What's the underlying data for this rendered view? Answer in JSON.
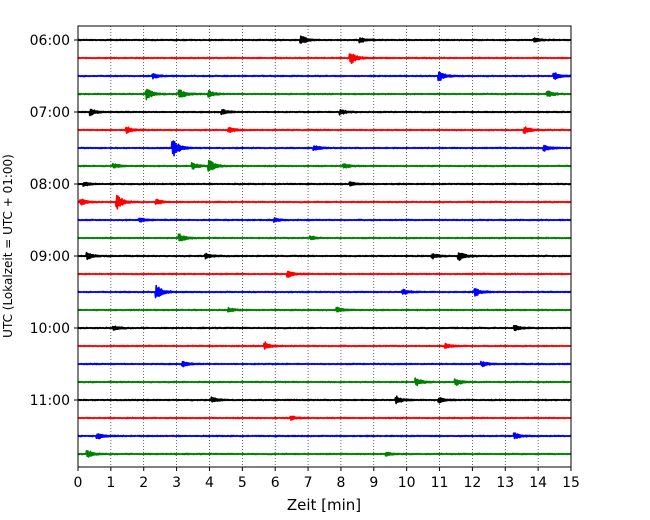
{
  "chart_data": {
    "type": "line",
    "title": "",
    "xlabel": "Zeit  [min]",
    "ylabel": "UTC (Lokalzeit = UTC + 01:00)",
    "xlim": [
      0,
      15
    ],
    "x_ticks": [
      0,
      1,
      2,
      3,
      4,
      5,
      6,
      7,
      8,
      9,
      10,
      11,
      12,
      13,
      14,
      15
    ],
    "y_ticks": [
      "06:00",
      "07:00",
      "08:00",
      "09:00",
      "10:00",
      "11:00"
    ],
    "grid": "vertical-dotted",
    "legend": "none",
    "trace_colors": [
      "#000000",
      "#ff0000",
      "#0000ff",
      "#008000"
    ],
    "series": [
      {
        "start": "06:00",
        "events": [
          {
            "t": 6.8,
            "amp": 0.7
          },
          {
            "t": 8.6,
            "amp": 0.4
          },
          {
            "t": 13.9,
            "amp": 0.3
          }
        ]
      },
      {
        "start": "06:15",
        "events": [
          {
            "t": 8.3,
            "amp": 1.0
          }
        ]
      },
      {
        "start": "06:30",
        "events": [
          {
            "t": 2.3,
            "amp": 0.4
          },
          {
            "t": 11.0,
            "amp": 0.8
          },
          {
            "t": 14.5,
            "amp": 0.6
          }
        ]
      },
      {
        "start": "06:45",
        "events": [
          {
            "t": 2.1,
            "amp": 0.9
          },
          {
            "t": 3.1,
            "amp": 0.8
          },
          {
            "t": 4.0,
            "amp": 0.5
          },
          {
            "t": 14.3,
            "amp": 0.5
          }
        ]
      },
      {
        "start": "07:00",
        "events": [
          {
            "t": 0.4,
            "amp": 0.5
          },
          {
            "t": 4.4,
            "amp": 0.4
          },
          {
            "t": 8.0,
            "amp": 0.4
          }
        ]
      },
      {
        "start": "07:15",
        "events": [
          {
            "t": 1.5,
            "amp": 0.5
          },
          {
            "t": 4.6,
            "amp": 0.4
          },
          {
            "t": 13.6,
            "amp": 0.6
          }
        ]
      },
      {
        "start": "07:30",
        "events": [
          {
            "t": 2.9,
            "amp": 1.6
          },
          {
            "t": 7.2,
            "amp": 0.4
          },
          {
            "t": 14.2,
            "amp": 0.5
          }
        ]
      },
      {
        "start": "07:45",
        "events": [
          {
            "t": 1.1,
            "amp": 0.4
          },
          {
            "t": 3.5,
            "amp": 0.5
          },
          {
            "t": 4.0,
            "amp": 1.0
          },
          {
            "t": 8.1,
            "amp": 0.4
          }
        ]
      },
      {
        "start": "08:00",
        "events": [
          {
            "t": 0.2,
            "amp": 0.3
          },
          {
            "t": 8.3,
            "amp": 0.3
          }
        ]
      },
      {
        "start": "08:15",
        "events": [
          {
            "t": 0.1,
            "amp": 0.5
          },
          {
            "t": 1.2,
            "amp": 1.3
          },
          {
            "t": 2.4,
            "amp": 0.4
          }
        ]
      },
      {
        "start": "08:30",
        "events": [
          {
            "t": 1.9,
            "amp": 0.3
          },
          {
            "t": 6.0,
            "amp": 0.3
          }
        ]
      },
      {
        "start": "08:45",
        "events": [
          {
            "t": 3.1,
            "amp": 0.6
          },
          {
            "t": 7.1,
            "amp": 0.3
          }
        ]
      },
      {
        "start": "09:00",
        "events": [
          {
            "t": 0.3,
            "amp": 0.5
          },
          {
            "t": 3.9,
            "amp": 0.4
          },
          {
            "t": 10.8,
            "amp": 0.4
          },
          {
            "t": 11.6,
            "amp": 0.7
          }
        ]
      },
      {
        "start": "09:15",
        "events": [
          {
            "t": 6.4,
            "amp": 0.5
          }
        ]
      },
      {
        "start": "09:30",
        "events": [
          {
            "t": 2.4,
            "amp": 1.1
          },
          {
            "t": 9.9,
            "amp": 0.4
          },
          {
            "t": 12.1,
            "amp": 0.6
          }
        ]
      },
      {
        "start": "09:45",
        "events": [
          {
            "t": 4.6,
            "amp": 0.3
          },
          {
            "t": 7.9,
            "amp": 0.4
          }
        ]
      },
      {
        "start": "10:00",
        "events": [
          {
            "t": 1.1,
            "amp": 0.3
          },
          {
            "t": 13.3,
            "amp": 0.4
          }
        ]
      },
      {
        "start": "10:15",
        "events": [
          {
            "t": 5.7,
            "amp": 0.6
          },
          {
            "t": 11.2,
            "amp": 0.4
          }
        ]
      },
      {
        "start": "10:30",
        "events": [
          {
            "t": 3.2,
            "amp": 0.4
          },
          {
            "t": 12.3,
            "amp": 0.4
          }
        ]
      },
      {
        "start": "10:45",
        "events": [
          {
            "t": 10.3,
            "amp": 0.6
          },
          {
            "t": 11.5,
            "amp": 0.5
          }
        ]
      },
      {
        "start": "11:00",
        "events": [
          {
            "t": 4.1,
            "amp": 0.4
          },
          {
            "t": 9.7,
            "amp": 0.6
          },
          {
            "t": 11.0,
            "amp": 0.4
          }
        ]
      },
      {
        "start": "11:15",
        "events": [
          {
            "t": 6.5,
            "amp": 0.3
          }
        ]
      },
      {
        "start": "11:30",
        "events": [
          {
            "t": 0.6,
            "amp": 0.5
          },
          {
            "t": 13.3,
            "amp": 0.5
          }
        ]
      },
      {
        "start": "11:45",
        "events": [
          {
            "t": 0.3,
            "amp": 0.6
          },
          {
            "t": 9.4,
            "amp": 0.3
          }
        ]
      }
    ]
  }
}
